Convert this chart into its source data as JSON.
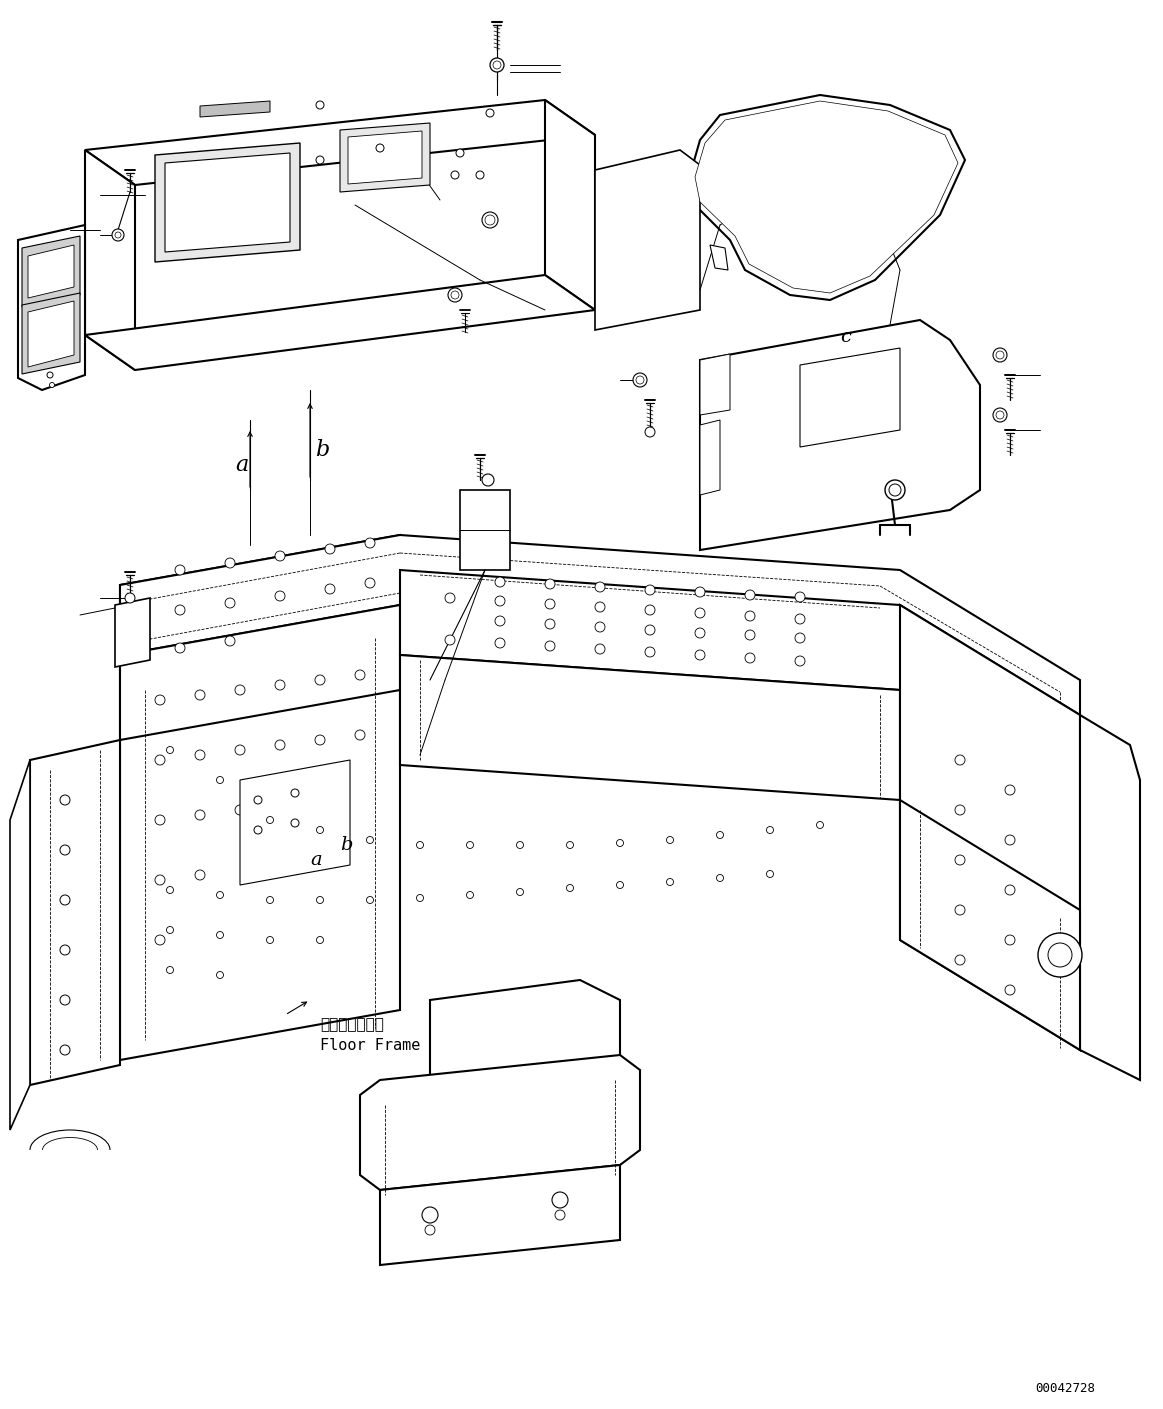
{
  "bg_color": "#ffffff",
  "line_color": "#000000",
  "part_number": "00042728",
  "floor_frame_jp": "フロアフレーム",
  "floor_frame_en": "Floor Frame",
  "fig_width": 11.63,
  "fig_height": 14.09,
  "dpi": 100
}
